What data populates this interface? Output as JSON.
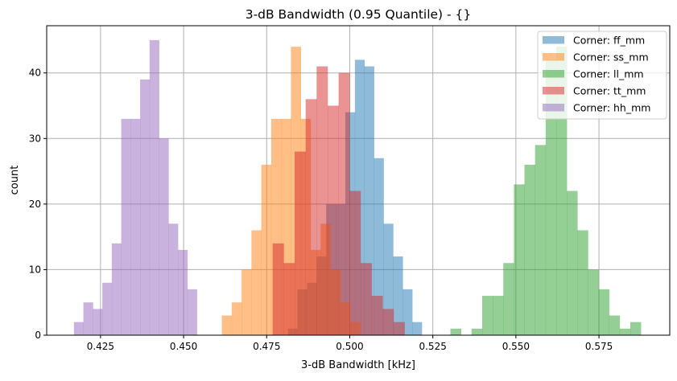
{
  "chart_data": {
    "type": "histogram",
    "title": "3-dB Bandwidth (0.95 Quantile) - {}",
    "xlabel": "3-dB Bandwidth [kHz]",
    "ylabel": "count",
    "xlim": [
      0.4088,
      0.5963
    ],
    "ylim": [
      0,
      47.2
    ],
    "xticks": [
      0.425,
      0.45,
      0.475,
      0.5,
      0.525,
      0.55,
      0.575
    ],
    "xtick_labels": [
      "0.425",
      "0.450",
      "0.475",
      "0.500",
      "0.525",
      "0.550",
      "0.575"
    ],
    "yticks": [
      0,
      10,
      20,
      30,
      40
    ],
    "ytick_labels": [
      "0",
      "10",
      "20",
      "30",
      "40"
    ],
    "grid": true,
    "legend_position": "top-right",
    "alpha": 0.5,
    "series": [
      {
        "name": "Corner: ff_mm",
        "color": "#1f77b4",
        "range": [
          0.4814,
          0.5217
        ],
        "counts": [
          1,
          7,
          8,
          12,
          20,
          20,
          34,
          42,
          41,
          27,
          17,
          12,
          7,
          2
        ]
      },
      {
        "name": "Corner: ss_mm",
        "color": "#ff7f0e",
        "range": [
          0.4615,
          0.5031
        ],
        "counts": [
          3,
          5,
          10,
          16,
          26,
          33,
          33,
          44,
          33,
          13,
          17,
          10,
          5,
          2
        ]
      },
      {
        "name": "Corner: ll_mm",
        "color": "#2ca02c",
        "range": [
          0.5303,
          0.5876
        ],
        "counts": [
          1,
          0,
          1,
          6,
          6,
          11,
          23,
          26,
          29,
          42,
          44,
          22,
          16,
          10,
          7,
          3,
          1,
          2
        ]
      },
      {
        "name": "Corner: tt_mm",
        "color": "#d62728",
        "range": [
          0.4768,
          0.5165
        ],
        "counts": [
          14,
          11,
          28,
          36,
          41,
          35,
          40,
          22,
          11,
          6,
          4,
          2
        ]
      },
      {
        "name": "Corner: hh_mm",
        "color": "#9467bd",
        "range": [
          0.417,
          0.454
        ],
        "counts": [
          2,
          5,
          4,
          8,
          14,
          33,
          33,
          39,
          45,
          30,
          17,
          13,
          7
        ]
      }
    ]
  }
}
